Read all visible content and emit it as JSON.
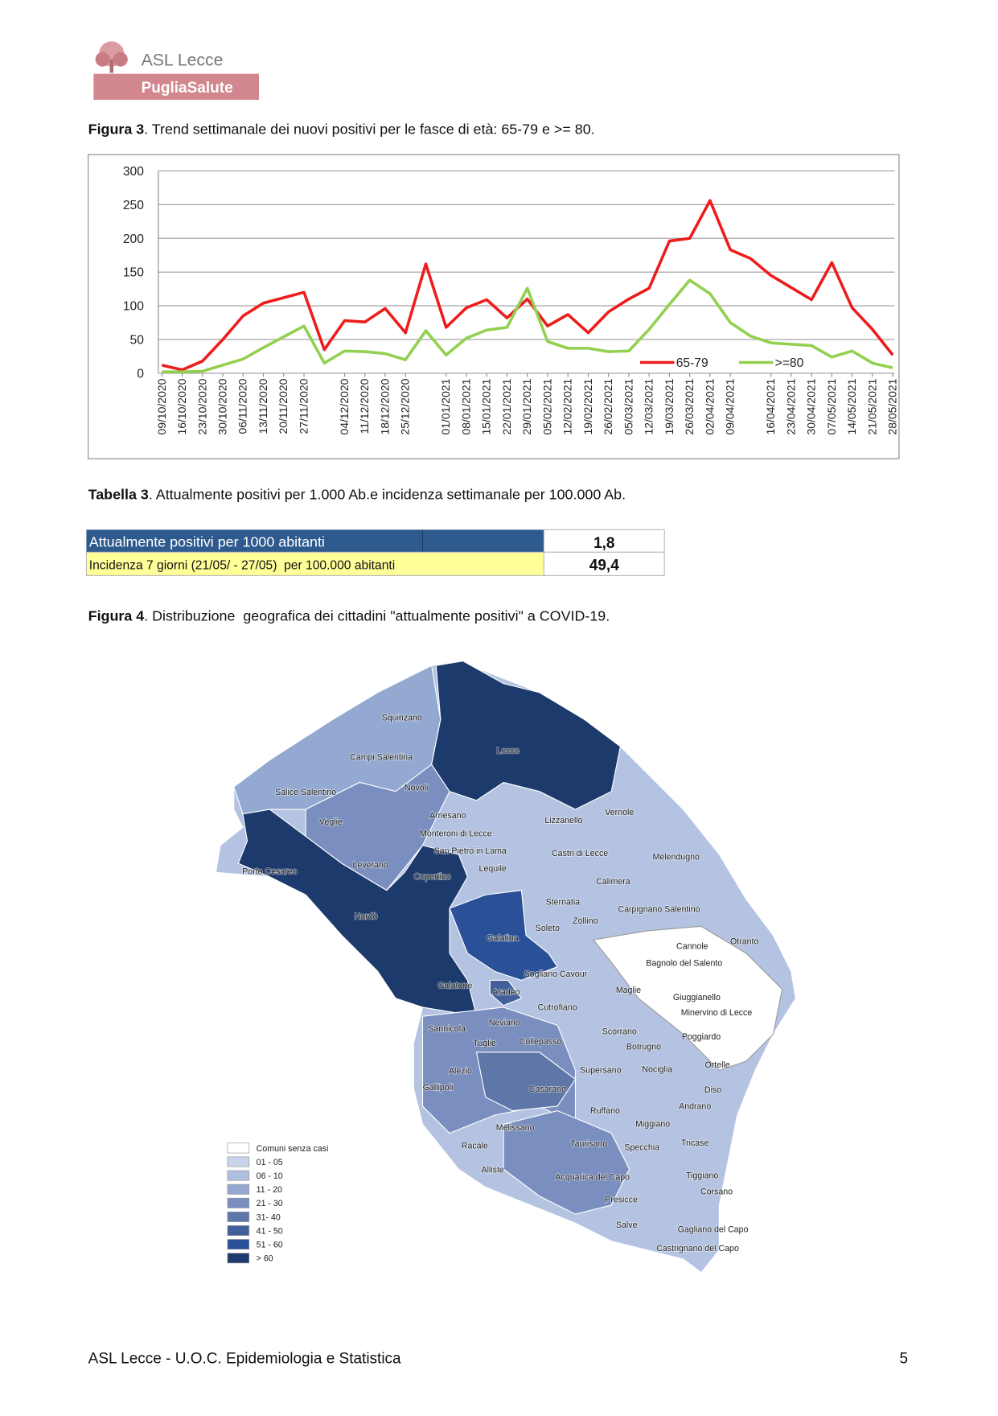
{
  "header": {
    "logo_title": "ASL Lecce",
    "logo_subtitle": "PugliaSalute"
  },
  "figure3": {
    "label": "Figura 3",
    "text": ". Trend settimanale dei nuovi positivi per le fasce di età: 65-79 e >= 80."
  },
  "chart_data": {
    "type": "line",
    "categories": [
      "09/10/2020",
      "16/10/2020",
      "23/10/2020",
      "30/10/2020",
      "06/11/2020",
      "13/11/2020",
      "20/11/2020",
      "27/11/2020",
      null,
      "04/12/2020",
      "11/12/2020",
      "18/12/2020",
      "25/12/2020",
      null,
      "01/01/2021",
      "08/01/2021",
      "15/01/2021",
      "22/01/2021",
      "29/01/2021",
      "05/02/2021",
      "12/02/2021",
      "19/02/2021",
      "26/02/2021",
      "05/03/2021",
      "12/03/2021",
      "19/03/2021",
      "26/03/2021",
      "02/04/2021",
      "09/04/2021",
      null,
      "16/04/2021",
      "23/04/2021",
      "30/04/2021",
      "07/05/2021",
      "14/05/2021",
      "21/05/2021",
      "28/05/2021"
    ],
    "series": [
      {
        "name": "65-79",
        "color": "#ee1c1c",
        "values": [
          12,
          5,
          18,
          50,
          85,
          104,
          112,
          120,
          35,
          78,
          76,
          96,
          60,
          162,
          68,
          97,
          109,
          82,
          110,
          70,
          87,
          60,
          91,
          110,
          126,
          196,
          200,
          256,
          183,
          170,
          145,
          127,
          109,
          164,
          97,
          65,
          27
        ]
      },
      {
        "name": ">=80",
        "color": "#92d050",
        "values": [
          2,
          2,
          3,
          12,
          21,
          38,
          54,
          70,
          15,
          33,
          32,
          29,
          20,
          63,
          27,
          52,
          64,
          68,
          126,
          47,
          37,
          37,
          32,
          33,
          65,
          102,
          138,
          118,
          75,
          55,
          45,
          43,
          41,
          24,
          33,
          15,
          8
        ]
      }
    ],
    "ylim": [
      0,
      300
    ],
    "yticks": [
      0,
      50,
      100,
      150,
      200,
      250,
      300
    ],
    "grid": true,
    "legend": "lower right"
  },
  "table3_caption": {
    "label": "Tabella 3",
    "text": ". Attualmente positivi per 1.000 Ab.e incidenza settimanale per 100.000 Ab."
  },
  "table": {
    "rows": [
      [
        "Attualmente positivi per 1000 abitanti",
        "1,8"
      ],
      [
        "Incidenza 7 giorni (21/05/ - 27/05)  per 100.000 abitanti",
        "49,4"
      ]
    ]
  },
  "figure4": {
    "label": "Figura 4",
    "text": ". Distribuzione  geografica dei cittadini \"attualmente positivi\" a COVID-19."
  },
  "map": {
    "municipalities": [
      "Squinzano",
      "Lecce",
      "Campi Salentina",
      "Salice Salentino",
      "Novoli",
      "Veglie",
      "Arnesano",
      "Lizzanello",
      "Vernole",
      "Monteroni di Lecce",
      "San Pietro in Lama",
      "Castri di Lecce",
      "Melendugno",
      "Porto Cesareo",
      "Leverano",
      "Copertino",
      "Lequile",
      "Calimera",
      "Sternatia",
      "Carpignano Salentino",
      "Zollino",
      "Soleto",
      "Nardò",
      "Galatina",
      "Cannole",
      "Otranto",
      "Bagnolo del Salento",
      "Sogliano Cavour",
      "Galatone",
      "Aradeo",
      "Maglie",
      "Giuggianello",
      "Cutrofiano",
      "Minervino di Lecce",
      "Neviano",
      "Sannicola",
      "Scorrano",
      "Poggiardo",
      "Tuglie",
      "Collepasso",
      "Botrugno",
      "Alezio",
      "Supersano",
      "Nociglia",
      "Ortelle",
      "Gallipoli",
      "Casarano",
      "Diso",
      "Ruffano",
      "Andrano",
      "Miggiano",
      "Melissano",
      "Racale",
      "Taurisano",
      "Specchia",
      "Tricase",
      "Alliste",
      "Acquarica del Capo",
      "Tiggiano",
      "Corsano",
      "Presicce",
      "Salve",
      "Gagliano del Capo",
      "Castrignano del Capo"
    ],
    "legend": [
      {
        "label": "Comuni senza casi",
        "color": "#ffffff"
      },
      {
        "label": "01 - 05",
        "color": "#c9d4ea"
      },
      {
        "label": "06 - 10",
        "color": "#aebfdf"
      },
      {
        "label": "11 - 20",
        "color": "#94a9d2"
      },
      {
        "label": "21 - 30",
        "color": "#7a8fbf"
      },
      {
        "label": "31- 40",
        "color": "#5f76a8"
      },
      {
        "label": "41 - 50",
        "color": "#41609a"
      },
      {
        "label": "51 - 60",
        "color": "#2a5198"
      },
      {
        "label": "> 60",
        "color": "#1d3a6c"
      }
    ]
  },
  "footer": {
    "text": "ASL Lecce - U.O.C. Epidemiologia e Statistica",
    "page": "5"
  }
}
